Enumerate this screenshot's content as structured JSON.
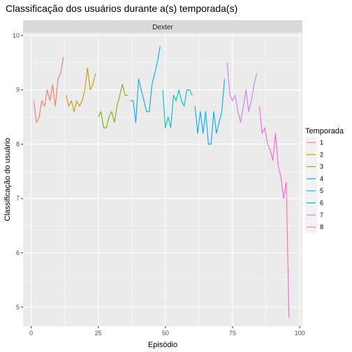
{
  "chart_data": {
    "type": "line",
    "title": "Classificação dos usuários durante a(s) temporada(s)",
    "facet_label": "Dexter",
    "xlabel": "Episódio",
    "ylabel": "Classificação do usuário",
    "xlim": [
      -3,
      101
    ],
    "ylim": [
      4.65,
      10.05
    ],
    "x_ticks": [
      0,
      25,
      50,
      75,
      100
    ],
    "x_tick_labels": [
      "0",
      "25",
      "50",
      "75",
      "100"
    ],
    "y_ticks": [
      5,
      6,
      7,
      8,
      9,
      10
    ],
    "y_tick_labels": [
      "5",
      "6",
      "7",
      "8",
      "9",
      "10"
    ],
    "grid": true,
    "legend": {
      "title": "Temporada",
      "placement": "right"
    },
    "series": [
      {
        "name": "1",
        "color": "#F8766D",
        "x": [
          1,
          2,
          3,
          4,
          5,
          6,
          7,
          8,
          9,
          10,
          11,
          12
        ],
        "y": [
          8.8,
          8.4,
          8.5,
          8.8,
          8.7,
          9.0,
          8.8,
          9.1,
          8.7,
          9.2,
          9.3,
          9.6
        ]
      },
      {
        "name": "2",
        "color": "#CD9600",
        "x": [
          13,
          14,
          15,
          16,
          17,
          18,
          19,
          20,
          21,
          22,
          23,
          24
        ],
        "y": [
          8.9,
          8.7,
          8.8,
          8.6,
          8.8,
          8.7,
          8.8,
          9.0,
          9.4,
          9.0,
          9.1,
          9.3
        ]
      },
      {
        "name": "3",
        "color": "#7CAE00",
        "x": [
          25,
          26,
          27,
          28,
          29,
          30,
          31,
          32,
          33,
          34,
          35,
          36
        ],
        "y": [
          8.5,
          8.6,
          8.3,
          8.3,
          8.5,
          8.6,
          8.4,
          8.7,
          8.9,
          9.1,
          8.9,
          8.9
        ]
      },
      {
        "name": "4",
        "color": "#00A9FF",
        "x": [
          37,
          38,
          39,
          40,
          41,
          42,
          43,
          44,
          45,
          46,
          47,
          48
        ],
        "y": [
          8.8,
          8.8,
          8.4,
          9.2,
          9.0,
          8.8,
          8.6,
          8.6,
          9.1,
          9.3,
          9.5,
          9.8
        ]
      },
      {
        "name": "5",
        "color": "#00BFC4",
        "x": [
          49,
          50,
          51,
          52,
          53,
          54,
          55,
          56,
          57,
          58,
          59,
          60
        ],
        "y": [
          9.0,
          8.3,
          8.5,
          8.3,
          8.9,
          8.8,
          9.0,
          8.8,
          8.7,
          9.0,
          9.0,
          8.9
        ]
      },
      {
        "name": "6",
        "color": "#00A9FF",
        "x": [
          61,
          62,
          63,
          64,
          65,
          66,
          67,
          68,
          69,
          70,
          71,
          72
        ],
        "y": [
          8.7,
          8.2,
          8.6,
          8.2,
          8.6,
          8.0,
          8.0,
          8.6,
          8.2,
          8.4,
          8.6,
          9.2
        ]
      },
      {
        "name": "7",
        "color": "#C77CFF",
        "x": [
          73,
          74,
          75,
          76,
          77,
          78,
          79,
          80,
          81,
          82,
          83,
          84
        ],
        "y": [
          9.5,
          8.9,
          8.8,
          8.9,
          8.6,
          8.4,
          8.7,
          9.0,
          8.6,
          8.8,
          9.1,
          9.3
        ]
      },
      {
        "name": "8",
        "color": "#FF61CC",
        "x": [
          85,
          86,
          87,
          88,
          89,
          90,
          91,
          92,
          93,
          94,
          95,
          96
        ],
        "y": [
          8.7,
          8.2,
          8.3,
          8.0,
          7.9,
          7.7,
          8.2,
          7.6,
          7.4,
          7.0,
          7.3,
          4.8
        ]
      }
    ],
    "panel_colors": {
      "background": "#EBEBEB",
      "grid": "#FFFFFF",
      "strip": "#D9D9D9",
      "text": "#4D4D4D"
    }
  }
}
